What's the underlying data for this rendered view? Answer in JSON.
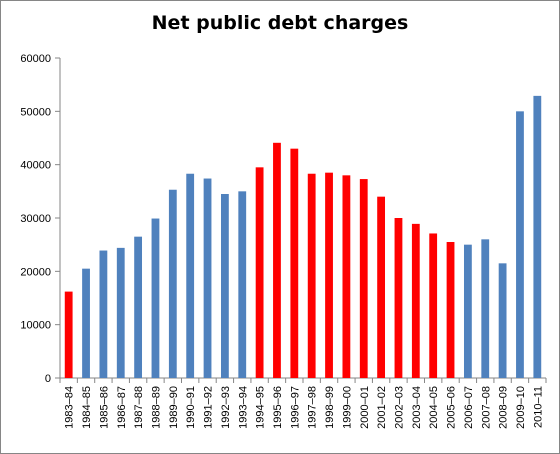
{
  "chart_data": {
    "type": "bar",
    "title": "Net public debt charges",
    "xlabel": "",
    "ylabel": "",
    "ylim": [
      0,
      60000
    ],
    "yticks": [
      0,
      10000,
      20000,
      30000,
      40000,
      50000,
      60000
    ],
    "grid": false,
    "legend": "none",
    "categories": [
      "1983–84",
      "1984–85",
      "1985–86",
      "1986–87",
      "1987–88",
      "1988–89",
      "1989–90",
      "1990–91",
      "1991–92",
      "1992–93",
      "1993–94",
      "1994–95",
      "1995–96",
      "1996–97",
      "1997–98",
      "1998–99",
      "1999–00",
      "2000–01",
      "2001–02",
      "2002–03",
      "2003–04",
      "2004–05",
      "2005–06",
      "2006–07",
      "2007–08",
      "2008–09",
      "2009–10",
      "2010–11"
    ],
    "values": [
      16200,
      20500,
      23900,
      24400,
      26500,
      29900,
      35300,
      38300,
      37400,
      34500,
      35000,
      39500,
      44100,
      43000,
      38300,
      38500,
      38000,
      37300,
      34000,
      30000,
      28900,
      27100,
      25500,
      25000,
      26000,
      21500,
      50000,
      52900
    ],
    "colors": [
      "#ff0000",
      "#4f81bd",
      "#4f81bd",
      "#4f81bd",
      "#4f81bd",
      "#4f81bd",
      "#4f81bd",
      "#4f81bd",
      "#4f81bd",
      "#4f81bd",
      "#4f81bd",
      "#ff0000",
      "#ff0000",
      "#ff0000",
      "#ff0000",
      "#ff0000",
      "#ff0000",
      "#ff0000",
      "#ff0000",
      "#ff0000",
      "#ff0000",
      "#ff0000",
      "#ff0000",
      "#4f81bd",
      "#4f81bd",
      "#4f81bd",
      "#4f81bd",
      "#4f81bd"
    ]
  }
}
